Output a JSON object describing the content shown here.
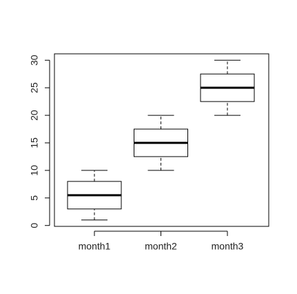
{
  "chart_data": {
    "type": "boxplot",
    "categories": [
      "month1",
      "month2",
      "month3"
    ],
    "boxes": [
      {
        "min": 1,
        "q1": 3,
        "median": 5.5,
        "q3": 8,
        "max": 10
      },
      {
        "min": 10,
        "q1": 12.5,
        "median": 15,
        "q3": 17.5,
        "max": 20
      },
      {
        "min": 20,
        "q1": 22.5,
        "median": 25,
        "q3": 27.5,
        "max": 30
      }
    ],
    "color": "#ffffff",
    "ylim": [
      -0.16,
      31.16
    ],
    "yticks": [
      0,
      5,
      10,
      15,
      20,
      25,
      30
    ]
  }
}
